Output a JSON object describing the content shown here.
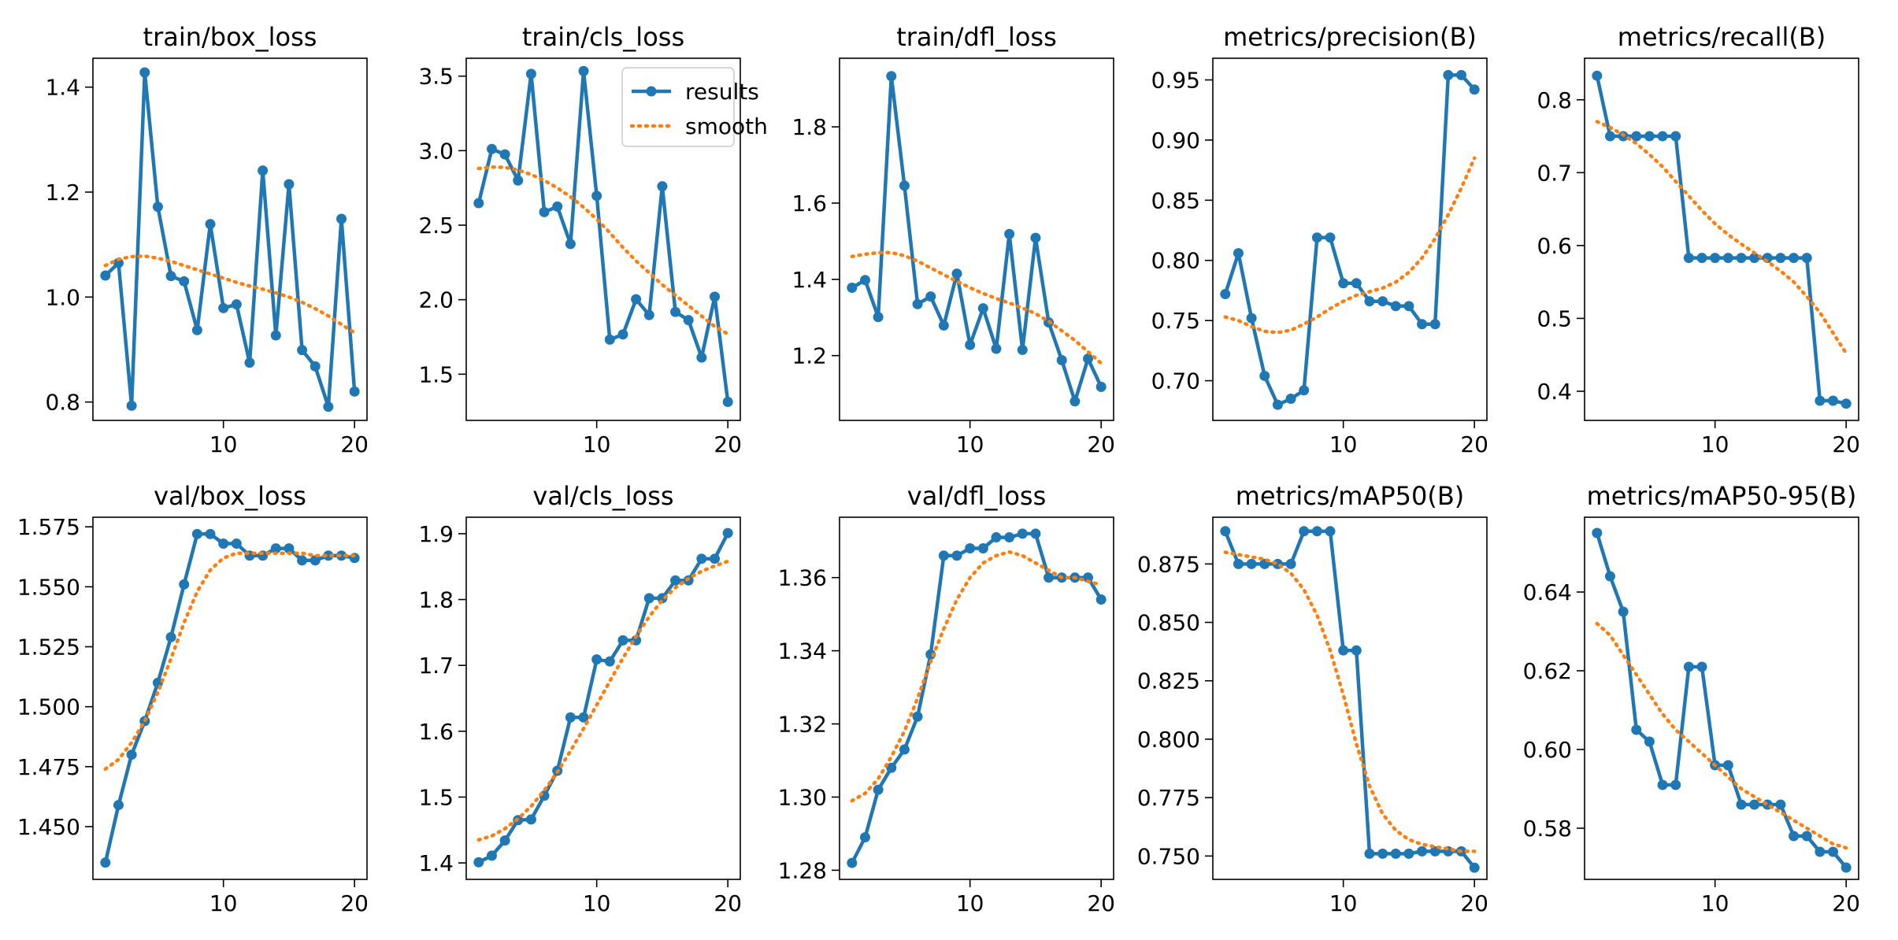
{
  "figure": {
    "colors": {
      "results": "#1f77b4",
      "smooth": "#ff7f0e",
      "axes": "#000000",
      "legend_border": "#cccccc",
      "background": "#ffffff"
    }
  },
  "chart_data": [
    {
      "type": "line",
      "title": "train/box_loss",
      "x": [
        1,
        2,
        3,
        4,
        5,
        6,
        7,
        8,
        9,
        10,
        11,
        12,
        13,
        14,
        15,
        16,
        17,
        18,
        19,
        20
      ],
      "xlim": [
        0.05,
        20.95
      ],
      "ylim": [
        0.765,
        1.455
      ],
      "xticks": [
        10,
        20
      ],
      "yticks": [
        0.8,
        1.0,
        1.2,
        1.4
      ],
      "ytick_labels": [
        "0.8",
        "1.0",
        "1.2",
        "1.4"
      ],
      "legend": false,
      "series": [
        {
          "name": "results",
          "values": [
            1.041,
            1.065,
            0.793,
            1.428,
            1.172,
            1.04,
            1.03,
            0.937,
            1.139,
            0.979,
            0.986,
            0.875,
            1.241,
            0.927,
            1.215,
            0.899,
            0.868,
            0.791,
            1.149,
            0.82
          ]
        },
        {
          "name": "smooth",
          "values": [
            1.06,
            1.072,
            1.077,
            1.078,
            1.074,
            1.068,
            1.06,
            1.052,
            1.044,
            1.036,
            1.028,
            1.021,
            1.015,
            1.008,
            1.0,
            0.99,
            0.978,
            0.964,
            0.948,
            0.932
          ]
        }
      ]
    },
    {
      "type": "line",
      "title": "train/cls_loss",
      "x": [
        1,
        2,
        3,
        4,
        5,
        6,
        7,
        8,
        9,
        10,
        11,
        12,
        13,
        14,
        15,
        16,
        17,
        18,
        19,
        20
      ],
      "xlim": [
        0.05,
        20.95
      ],
      "ylim": [
        1.19,
        3.62
      ],
      "xticks": [
        10,
        20
      ],
      "yticks": [
        1.5,
        2.0,
        2.5,
        3.0,
        3.5
      ],
      "ytick_labels": [
        "1.5",
        "2.0",
        "2.5",
        "3.0",
        "3.5"
      ],
      "legend": true,
      "legend_entries": [
        "results",
        "smooth"
      ],
      "series": [
        {
          "name": "results",
          "values": [
            2.648,
            3.011,
            2.975,
            2.8,
            3.515,
            2.588,
            2.625,
            2.374,
            3.534,
            2.697,
            1.732,
            1.767,
            2.003,
            1.897,
            2.761,
            1.918,
            1.863,
            1.612,
            2.02,
            1.314
          ]
        },
        {
          "name": "smooth",
          "values": [
            2.88,
            2.89,
            2.888,
            2.87,
            2.84,
            2.8,
            2.75,
            2.69,
            2.62,
            2.54,
            2.45,
            2.35,
            2.26,
            2.18,
            2.1,
            2.03,
            1.96,
            1.89,
            1.82,
            1.77
          ]
        }
      ]
    },
    {
      "type": "line",
      "title": "train/dfl_loss",
      "x": [
        1,
        2,
        3,
        4,
        5,
        6,
        7,
        8,
        9,
        10,
        11,
        12,
        13,
        14,
        15,
        16,
        17,
        18,
        19,
        20
      ],
      "xlim": [
        0.05,
        20.95
      ],
      "ylim": [
        1.03,
        1.98
      ],
      "xticks": [
        10,
        20
      ],
      "yticks": [
        1.2,
        1.4,
        1.6,
        1.8
      ],
      "ytick_labels": [
        "1.2",
        "1.4",
        "1.6",
        "1.8"
      ],
      "legend": false,
      "series": [
        {
          "name": "results",
          "values": [
            1.378,
            1.398,
            1.301,
            1.933,
            1.646,
            1.335,
            1.355,
            1.279,
            1.415,
            1.228,
            1.324,
            1.218,
            1.519,
            1.215,
            1.509,
            1.287,
            1.188,
            1.08,
            1.192,
            1.118
          ]
        },
        {
          "name": "smooth",
          "values": [
            1.46,
            1.466,
            1.47,
            1.47,
            1.462,
            1.448,
            1.43,
            1.412,
            1.395,
            1.378,
            1.363,
            1.35,
            1.338,
            1.325,
            1.31,
            1.29,
            1.265,
            1.24,
            1.21,
            1.18
          ]
        }
      ]
    },
    {
      "type": "line",
      "title": "metrics/precision(B)",
      "x": [
        1,
        2,
        3,
        4,
        5,
        6,
        7,
        8,
        9,
        10,
        11,
        12,
        13,
        14,
        15,
        16,
        17,
        18,
        19,
        20
      ],
      "xlim": [
        0.05,
        20.95
      ],
      "ylim": [
        0.667,
        0.968
      ],
      "xticks": [
        10,
        20
      ],
      "yticks": [
        0.7,
        0.75,
        0.8,
        0.85,
        0.9,
        0.95
      ],
      "ytick_labels": [
        "0.70",
        "0.75",
        "0.80",
        "0.85",
        "0.90",
        "0.95"
      ],
      "legend": false,
      "series": [
        {
          "name": "results",
          "values": [
            0.772,
            0.806,
            0.752,
            0.704,
            0.68,
            0.685,
            0.692,
            0.819,
            0.819,
            0.781,
            0.781,
            0.766,
            0.766,
            0.762,
            0.762,
            0.747,
            0.747,
            0.954,
            0.954,
            0.942
          ]
        },
        {
          "name": "smooth",
          "values": [
            0.753,
            0.75,
            0.745,
            0.741,
            0.74,
            0.742,
            0.747,
            0.753,
            0.76,
            0.766,
            0.771,
            0.774,
            0.777,
            0.782,
            0.79,
            0.802,
            0.818,
            0.838,
            0.86,
            0.885
          ]
        }
      ]
    },
    {
      "type": "line",
      "title": "metrics/recall(B)",
      "x": [
        1,
        2,
        3,
        4,
        5,
        6,
        7,
        8,
        9,
        10,
        11,
        12,
        13,
        14,
        15,
        16,
        17,
        18,
        19,
        20
      ],
      "xlim": [
        0.05,
        20.95
      ],
      "ylim": [
        0.36,
        0.857
      ],
      "xticks": [
        10,
        20
      ],
      "yticks": [
        0.4,
        0.5,
        0.6,
        0.7,
        0.8
      ],
      "ytick_labels": [
        "0.4",
        "0.5",
        "0.6",
        "0.7",
        "0.8"
      ],
      "legend": false,
      "series": [
        {
          "name": "results",
          "values": [
            0.833,
            0.75,
            0.75,
            0.75,
            0.75,
            0.75,
            0.75,
            0.583,
            0.583,
            0.583,
            0.583,
            0.583,
            0.583,
            0.583,
            0.583,
            0.583,
            0.583,
            0.387,
            0.387,
            0.383
          ]
        },
        {
          "name": "smooth",
          "values": [
            0.77,
            0.762,
            0.752,
            0.74,
            0.725,
            0.708,
            0.688,
            0.668,
            0.648,
            0.63,
            0.615,
            0.602,
            0.59,
            0.578,
            0.565,
            0.55,
            0.53,
            0.508,
            0.48,
            0.452
          ]
        }
      ]
    },
    {
      "type": "line",
      "title": "val/box_loss",
      "x": [
        1,
        2,
        3,
        4,
        5,
        6,
        7,
        8,
        9,
        10,
        11,
        12,
        13,
        14,
        15,
        16,
        17,
        18,
        19,
        20
      ],
      "xlim": [
        0.05,
        20.95
      ],
      "ylim": [
        1.428,
        1.579
      ],
      "xticks": [
        10,
        20
      ],
      "yticks": [
        1.45,
        1.475,
        1.5,
        1.525,
        1.55,
        1.575
      ],
      "ytick_labels": [
        "1.450",
        "1.475",
        "1.500",
        "1.525",
        "1.550",
        "1.575"
      ],
      "legend": false,
      "series": [
        {
          "name": "results",
          "values": [
            1.435,
            1.459,
            1.48,
            1.494,
            1.51,
            1.529,
            1.551,
            1.572,
            1.572,
            1.568,
            1.568,
            1.563,
            1.563,
            1.566,
            1.566,
            1.561,
            1.561,
            1.563,
            1.563,
            1.562
          ]
        },
        {
          "name": "smooth",
          "values": [
            1.474,
            1.478,
            1.485,
            1.494,
            1.506,
            1.52,
            1.535,
            1.548,
            1.557,
            1.562,
            1.564,
            1.564,
            1.564,
            1.564,
            1.564,
            1.564,
            1.563,
            1.563,
            1.563,
            1.563
          ]
        }
      ]
    },
    {
      "type": "line",
      "title": "val/cls_loss",
      "x": [
        1,
        2,
        3,
        4,
        5,
        6,
        7,
        8,
        9,
        10,
        11,
        12,
        13,
        14,
        15,
        16,
        17,
        18,
        19,
        20
      ],
      "xlim": [
        0.05,
        20.95
      ],
      "ylim": [
        1.375,
        1.925
      ],
      "xticks": [
        10,
        20
      ],
      "yticks": [
        1.4,
        1.5,
        1.6,
        1.7,
        1.8,
        1.9
      ],
      "ytick_labels": [
        "1.4",
        "1.5",
        "1.6",
        "1.7",
        "1.8",
        "1.9"
      ],
      "legend": false,
      "series": [
        {
          "name": "results",
          "values": [
            1.401,
            1.411,
            1.434,
            1.465,
            1.466,
            1.502,
            1.54,
            1.621,
            1.621,
            1.709,
            1.706,
            1.738,
            1.738,
            1.802,
            1.802,
            1.829,
            1.829,
            1.862,
            1.862,
            1.901
          ]
        },
        {
          "name": "smooth",
          "values": [
            1.435,
            1.441,
            1.452,
            1.467,
            1.486,
            1.51,
            1.538,
            1.57,
            1.604,
            1.64,
            1.676,
            1.711,
            1.744,
            1.774,
            1.799,
            1.818,
            1.832,
            1.843,
            1.851,
            1.858
          ]
        }
      ]
    },
    {
      "type": "line",
      "title": "val/dfl_loss",
      "x": [
        1,
        2,
        3,
        4,
        5,
        6,
        7,
        8,
        9,
        10,
        11,
        12,
        13,
        14,
        15,
        16,
        17,
        18,
        19,
        20
      ],
      "xlim": [
        0.05,
        20.95
      ],
      "ylim": [
        1.2775,
        1.3765
      ],
      "xticks": [
        10,
        20
      ],
      "yticks": [
        1.28,
        1.3,
        1.32,
        1.34,
        1.36
      ],
      "ytick_labels": [
        "1.28",
        "1.30",
        "1.32",
        "1.34",
        "1.36"
      ],
      "legend": false,
      "series": [
        {
          "name": "results",
          "values": [
            1.282,
            1.289,
            1.302,
            1.308,
            1.313,
            1.322,
            1.339,
            1.366,
            1.366,
            1.368,
            1.368,
            1.371,
            1.371,
            1.372,
            1.372,
            1.36,
            1.36,
            1.36,
            1.36,
            1.354
          ]
        },
        {
          "name": "smooth",
          "values": [
            1.299,
            1.301,
            1.305,
            1.311,
            1.318,
            1.327,
            1.337,
            1.346,
            1.354,
            1.36,
            1.364,
            1.366,
            1.367,
            1.366,
            1.364,
            1.362,
            1.36,
            1.36,
            1.359,
            1.358
          ]
        }
      ]
    },
    {
      "type": "line",
      "title": "metrics/mAP50(B)",
      "x": [
        1,
        2,
        3,
        4,
        5,
        6,
        7,
        8,
        9,
        10,
        11,
        12,
        13,
        14,
        15,
        16,
        17,
        18,
        19,
        20
      ],
      "xlim": [
        0.05,
        20.95
      ],
      "ylim": [
        0.74,
        0.895
      ],
      "xticks": [
        10,
        20
      ],
      "yticks": [
        0.75,
        0.775,
        0.8,
        0.825,
        0.85,
        0.875
      ],
      "ytick_labels": [
        "0.750",
        "0.775",
        "0.800",
        "0.825",
        "0.850",
        "0.875"
      ],
      "legend": false,
      "series": [
        {
          "name": "results",
          "values": [
            0.889,
            0.875,
            0.875,
            0.875,
            0.875,
            0.875,
            0.889,
            0.889,
            0.889,
            0.838,
            0.838,
            0.751,
            0.751,
            0.751,
            0.751,
            0.752,
            0.752,
            0.752,
            0.752,
            0.745
          ]
        },
        {
          "name": "smooth",
          "values": [
            0.88,
            0.879,
            0.878,
            0.877,
            0.875,
            0.871,
            0.864,
            0.853,
            0.838,
            0.819,
            0.798,
            0.78,
            0.768,
            0.761,
            0.757,
            0.755,
            0.754,
            0.753,
            0.752,
            0.752
          ]
        }
      ]
    },
    {
      "type": "line",
      "title": "metrics/mAP50-95(B)",
      "x": [
        1,
        2,
        3,
        4,
        5,
        6,
        7,
        8,
        9,
        10,
        11,
        12,
        13,
        14,
        15,
        16,
        17,
        18,
        19,
        20
      ],
      "xlim": [
        0.05,
        20.95
      ],
      "ylim": [
        0.567,
        0.659
      ],
      "xticks": [
        10,
        20
      ],
      "yticks": [
        0.58,
        0.6,
        0.62,
        0.64
      ],
      "ytick_labels": [
        "0.58",
        "0.60",
        "0.62",
        "0.64"
      ],
      "legend": false,
      "series": [
        {
          "name": "results",
          "values": [
            0.655,
            0.644,
            0.635,
            0.605,
            0.602,
            0.591,
            0.591,
            0.621,
            0.621,
            0.596,
            0.596,
            0.586,
            0.586,
            0.586,
            0.586,
            0.578,
            0.578,
            0.574,
            0.574,
            0.57
          ]
        },
        {
          "name": "smooth",
          "values": [
            0.632,
            0.629,
            0.624,
            0.619,
            0.614,
            0.609,
            0.605,
            0.602,
            0.599,
            0.596,
            0.593,
            0.59,
            0.588,
            0.586,
            0.584,
            0.582,
            0.58,
            0.578,
            0.576,
            0.575
          ]
        }
      ]
    }
  ]
}
